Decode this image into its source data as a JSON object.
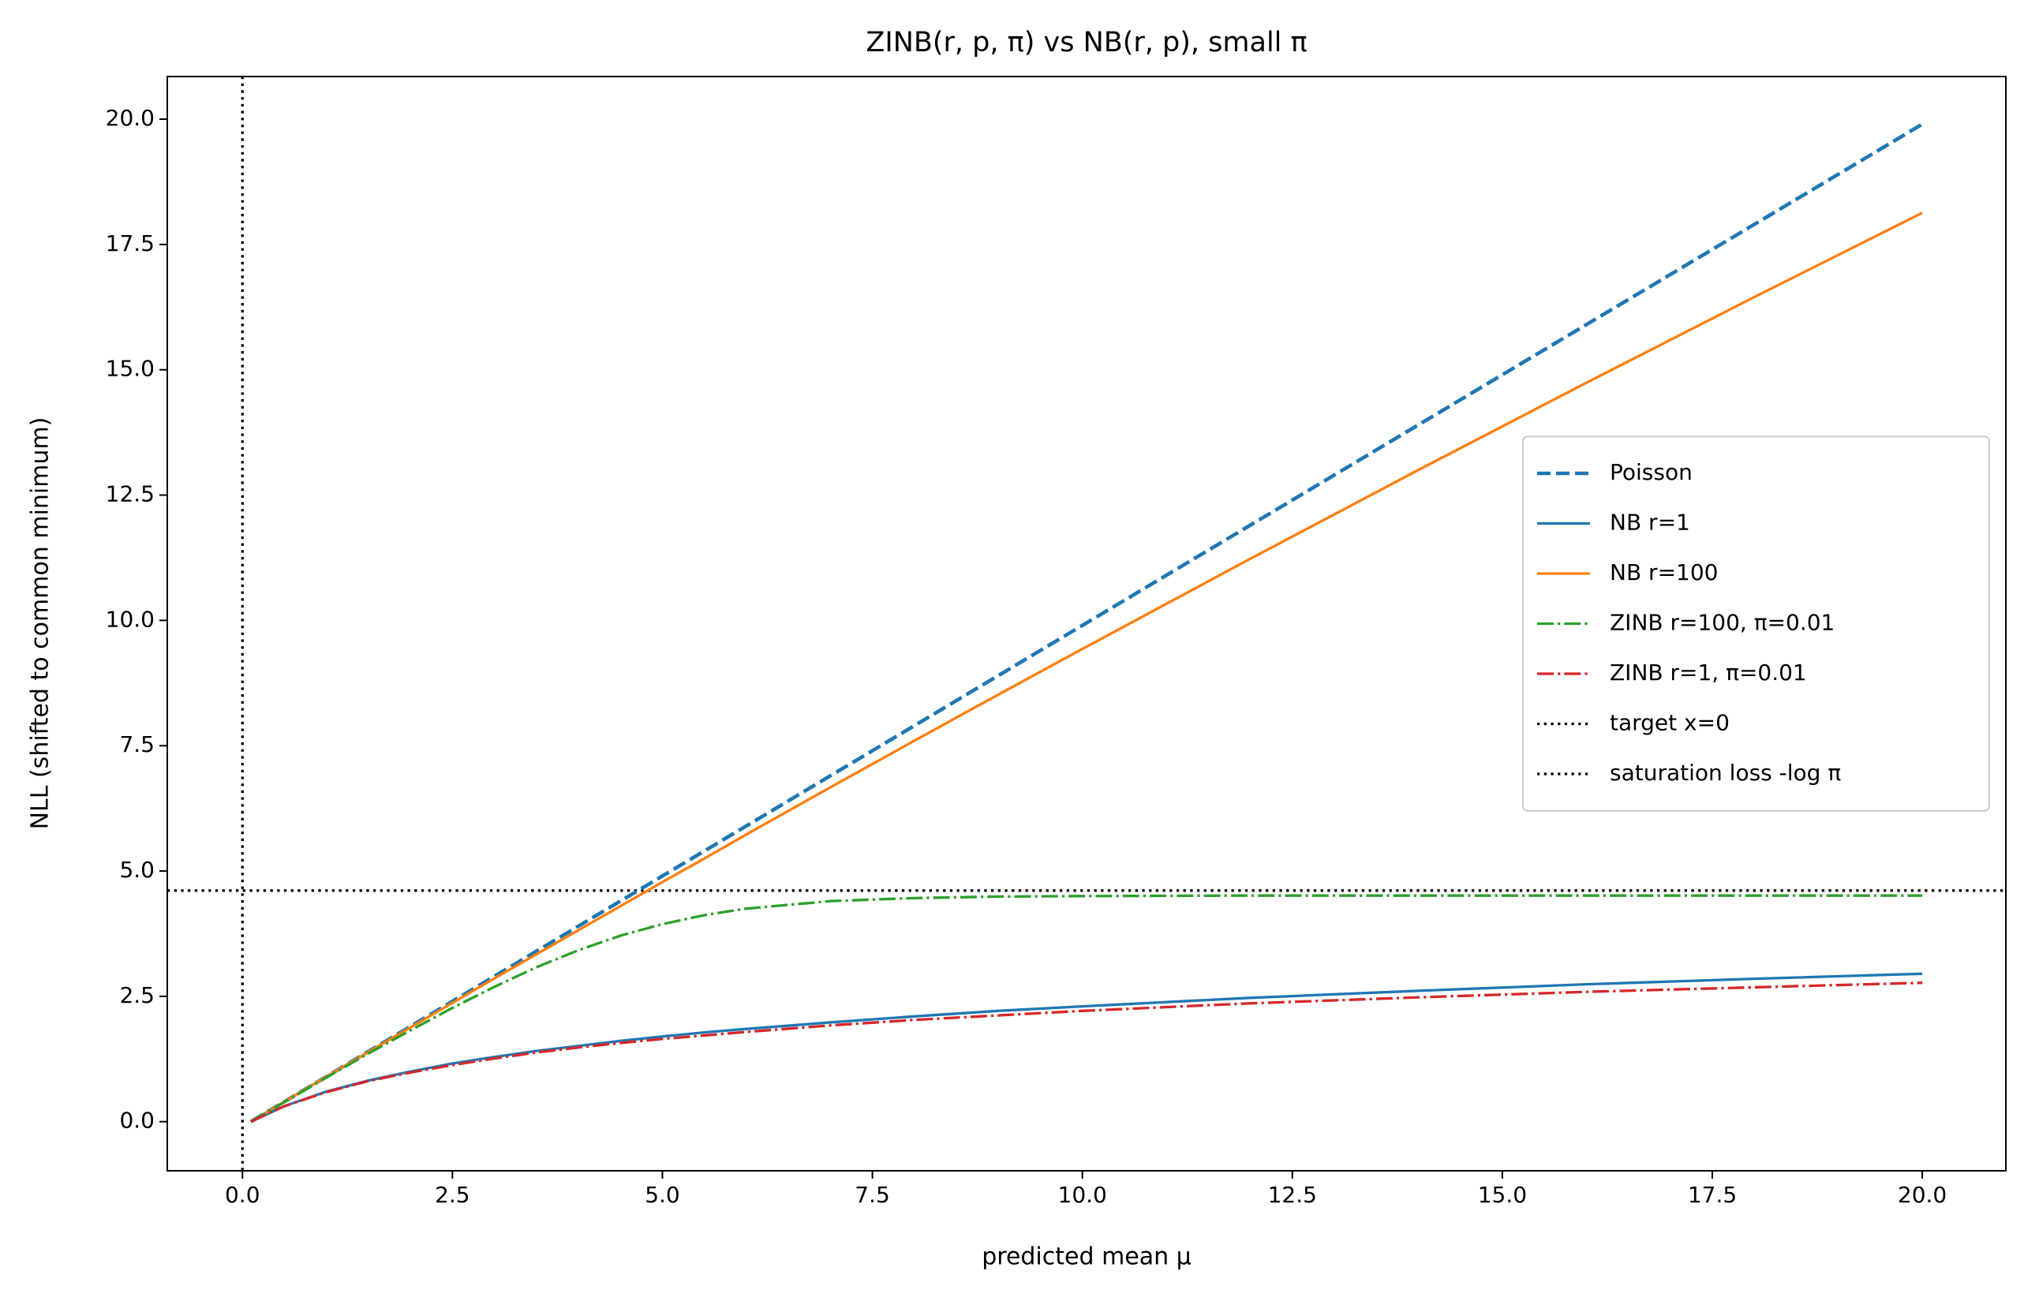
{
  "chart_data": {
    "type": "line",
    "title": "ZINB(r, p, π) vs NB(r, p), small π",
    "x_label": "predicted mean μ",
    "y_label": "NLL (shifted to common minimum)",
    "x": [
      0.1,
      0.5,
      1,
      1.5,
      2,
      2.5,
      3,
      3.5,
      4,
      4.5,
      5,
      5.5,
      6,
      7,
      8,
      9,
      10,
      12,
      14,
      16,
      18,
      20
    ],
    "xlim": [
      -0.895,
      20.995
    ],
    "ylim": [
      -0.98,
      20.85
    ],
    "xticks": [
      {
        "value": 0,
        "label": "0.0"
      },
      2.5,
      {
        "value": 5,
        "label": "5.0"
      },
      7.5,
      {
        "value": 10,
        "label": "10.0"
      },
      12.5,
      {
        "value": 15,
        "label": "15.0"
      },
      17.5,
      {
        "value": 20,
        "label": "20.0"
      }
    ],
    "yticks": [
      {
        "value": 0,
        "label": "0.0"
      },
      2.5,
      {
        "value": 5,
        "label": "5.0"
      },
      7.5,
      {
        "value": 10,
        "label": "10.0"
      },
      12.5,
      {
        "value": 15,
        "label": "15.0"
      },
      17.5,
      {
        "value": 20,
        "label": "20.0"
      }
    ],
    "series": [
      {
        "name": "Poisson",
        "color": "#1f77b4",
        "linestyle": "dashed",
        "values": [
          0,
          0.4,
          0.9,
          1.4,
          1.9,
          2.4,
          2.9,
          3.4,
          3.9,
          4.4,
          4.9,
          5.4,
          5.9,
          6.9,
          7.9,
          8.9,
          9.9,
          11.9,
          13.9,
          15.9,
          17.9,
          19.9
        ]
      },
      {
        "name": "NB r=1",
        "color": "#1f77b4",
        "linestyle": "solid",
        "values": [
          0,
          0.31,
          0.6,
          0.82,
          1.0,
          1.16,
          1.29,
          1.41,
          1.51,
          1.61,
          1.7,
          1.78,
          1.85,
          1.98,
          2.1,
          2.21,
          2.3,
          2.47,
          2.61,
          2.74,
          2.85,
          2.95
        ]
      },
      {
        "name": "NB r=100",
        "color": "#ff7f0e",
        "linestyle": "solid",
        "values": [
          0,
          0.4,
          0.9,
          1.39,
          1.88,
          2.37,
          2.86,
          3.34,
          3.82,
          4.3,
          4.78,
          5.25,
          5.73,
          6.67,
          7.6,
          8.52,
          9.43,
          11.23,
          13.0,
          14.74,
          16.45,
          18.13
        ]
      },
      {
        "name": "ZINB r=100, π=0.01",
        "color": "#2ca02c",
        "linestyle": "dashdot",
        "values": [
          0,
          0.39,
          0.88,
          1.36,
          1.82,
          2.27,
          2.69,
          3.08,
          3.42,
          3.71,
          3.94,
          4.12,
          4.25,
          4.4,
          4.46,
          4.49,
          4.5,
          4.51,
          4.51,
          4.51,
          4.51,
          4.51
        ]
      },
      {
        "name": "ZINB r=1, π=0.01",
        "color": "#d62728",
        "linestyle": "dashdot",
        "values": [
          0,
          0.31,
          0.59,
          0.81,
          0.98,
          1.13,
          1.26,
          1.38,
          1.48,
          1.57,
          1.65,
          1.72,
          1.79,
          1.92,
          2.03,
          2.12,
          2.21,
          2.36,
          2.48,
          2.59,
          2.68,
          2.77
        ]
      }
    ],
    "reference_lines": [
      {
        "name": "target x=0",
        "color": "#000000",
        "linestyle": "dotted",
        "orientation": "vertical",
        "value": 0
      },
      {
        "name": "saturation loss -log π",
        "color": "#000000",
        "linestyle": "dotted",
        "orientation": "horizontal",
        "value": 4.61
      }
    ],
    "legend": "center right"
  }
}
